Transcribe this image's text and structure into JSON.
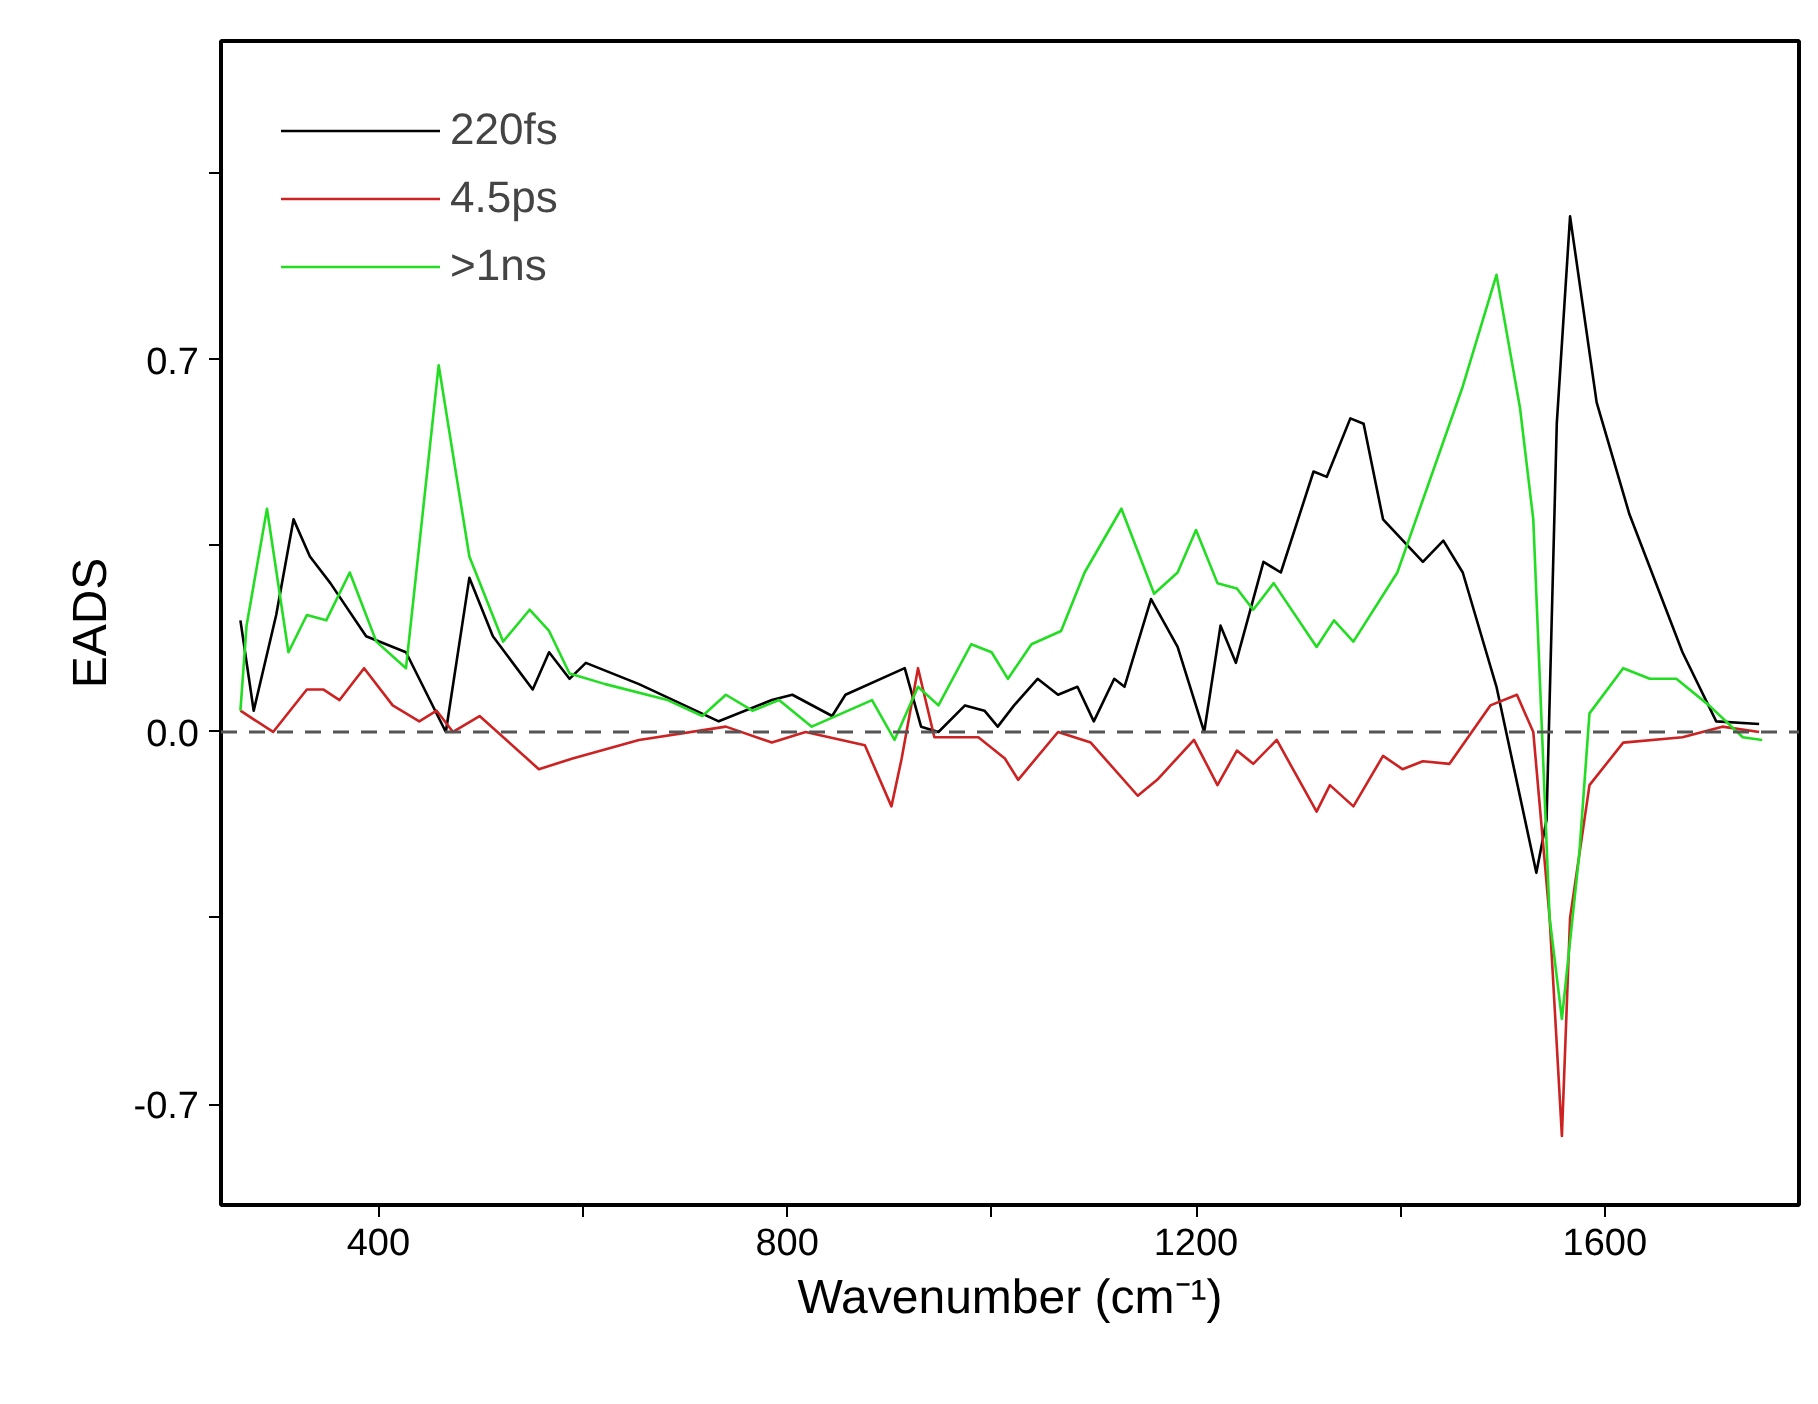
{
  "chart_data": {
    "type": "line",
    "xlabel": "Wavenumber (cm⁻¹)",
    "ylabel": "EADS",
    "xlim": [
      246,
      1790
    ],
    "ylim": [
      -0.89,
      1.3
    ],
    "xticks": [
      400,
      {
        "value": 600,
        "label": null
      },
      800,
      {
        "value": 1000,
        "label": null
      },
      1200,
      {
        "value": 1400,
        "label": null
      },
      1600
    ],
    "yticks": [
      -0.7,
      {
        "value": -0.35,
        "label": null
      },
      {
        "value": 0,
        "label": "0.0"
      },
      {
        "value": 0.35,
        "label": null
      },
      0.7,
      {
        "value": 1.05,
        "label": null
      }
    ],
    "grid": false,
    "legend": "top left",
    "line_style": "solid",
    "marker": "none",
    "ref_lines": [
      {
        "axis": "y",
        "value": 0,
        "color": "#555555",
        "line_style": "dashed"
      }
    ],
    "series": [
      {
        "name": "220fs",
        "color": "#000000",
        "x": [
          265,
          278,
          300,
          317,
          333,
          353,
          388,
          427,
          466,
          489,
          512,
          551,
          567,
          587,
          603,
          655,
          733,
          785,
          805,
          844,
          857,
          915,
          931,
          948,
          974,
          993,
          1006,
          1022,
          1045,
          1065,
          1084,
          1100,
          1120,
          1130,
          1156,
          1182,
          1208,
          1224,
          1239,
          1266,
          1283,
          1315,
          1328,
          1351,
          1364,
          1383,
          1422,
          1442,
          1461,
          1494,
          1533,
          1543,
          1553,
          1566,
          1592,
          1624,
          1676,
          1709,
          1751
        ],
        "values": [
          0.21,
          0.04,
          0.22,
          0.4,
          0.33,
          0.28,
          0.18,
          0.15,
          0.0,
          0.29,
          0.18,
          0.08,
          0.15,
          0.1,
          0.13,
          0.09,
          0.02,
          0.06,
          0.07,
          0.03,
          0.07,
          0.12,
          0.01,
          0.0,
          0.05,
          0.04,
          0.01,
          0.05,
          0.1,
          0.07,
          0.085,
          0.02,
          0.1,
          0.085,
          0.25,
          0.16,
          0.0,
          0.2,
          0.13,
          0.32,
          0.3,
          0.49,
          0.48,
          0.59,
          0.58,
          0.4,
          0.32,
          0.36,
          0.3,
          0.085,
          -0.265,
          -0.165,
          0.58,
          0.97,
          0.62,
          0.41,
          0.15,
          0.02,
          0.015
        ]
      },
      {
        "name": "4.5ps",
        "color": "#cc2222",
        "x": [
          265,
          297,
          330,
          346,
          362,
          386,
          414,
          440,
          457,
          473,
          499,
          557,
          590,
          655,
          740,
          785,
          818,
          876,
          902,
          912,
          928,
          944,
          987,
          1013,
          1026,
          1065,
          1097,
          1143,
          1162,
          1198,
          1221,
          1240,
          1256,
          1279,
          1318,
          1331,
          1354,
          1383,
          1402,
          1422,
          1448,
          1488,
          1514,
          1530,
          1546,
          1558,
          1566,
          1585,
          1618,
          1676,
          1715,
          1751
        ],
        "values": [
          0.04,
          0.0,
          0.08,
          0.08,
          0.06,
          0.12,
          0.05,
          0.02,
          0.04,
          0.0,
          0.03,
          -0.07,
          -0.05,
          -0.015,
          0.01,
          -0.02,
          0.0,
          -0.025,
          -0.14,
          -0.05,
          0.12,
          -0.01,
          -0.01,
          -0.05,
          -0.09,
          0.0,
          -0.02,
          -0.12,
          -0.09,
          -0.015,
          -0.1,
          -0.035,
          -0.06,
          -0.015,
          -0.15,
          -0.1,
          -0.14,
          -0.045,
          -0.07,
          -0.055,
          -0.06,
          0.05,
          0.07,
          0.0,
          -0.35,
          -0.76,
          -0.35,
          -0.1,
          -0.02,
          -0.01,
          0.01,
          0.0
        ]
      },
      {
        "name": ">1ns",
        "color": "#22dd22",
        "x": [
          265,
          271,
          291,
          312,
          330,
          349,
          372,
          398,
          427,
          459,
          489,
          522,
          548,
          567,
          587,
          622,
          683,
          717,
          740,
          766,
          792,
          824,
          883,
          905,
          928,
          948,
          980,
          1000,
          1016,
          1039,
          1068,
          1091,
          1127,
          1159,
          1182,
          1200,
          1221,
          1240,
          1256,
          1276,
          1318,
          1335,
          1354,
          1397,
          1461,
          1494,
          1517,
          1530,
          1546,
          1558,
          1575,
          1585,
          1618,
          1644,
          1670,
          1702,
          1735,
          1754
        ],
        "values": [
          0.04,
          0.2,
          0.42,
          0.15,
          0.22,
          0.21,
          0.3,
          0.17,
          0.12,
          0.69,
          0.33,
          0.17,
          0.23,
          0.19,
          0.11,
          0.09,
          0.06,
          0.03,
          0.07,
          0.04,
          0.06,
          0.01,
          0.06,
          -0.015,
          0.085,
          0.05,
          0.165,
          0.15,
          0.1,
          0.165,
          0.19,
          0.3,
          0.42,
          0.26,
          0.3,
          0.38,
          0.28,
          0.27,
          0.23,
          0.28,
          0.16,
          0.21,
          0.17,
          0.3,
          0.65,
          0.86,
          0.61,
          0.4,
          -0.35,
          -0.54,
          -0.23,
          0.035,
          0.12,
          0.1,
          0.1,
          0.05,
          -0.01,
          -0.015
        ]
      }
    ]
  }
}
